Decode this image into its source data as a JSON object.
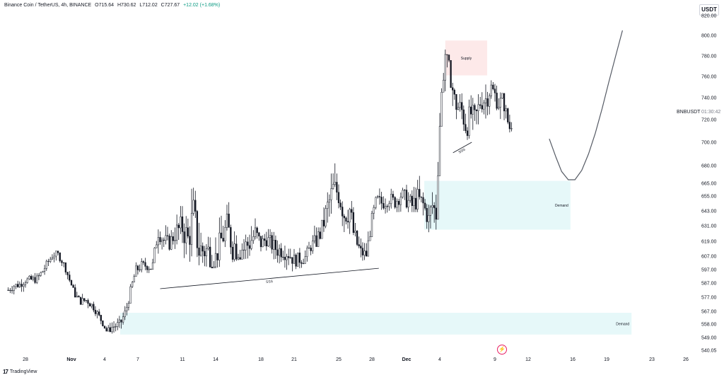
{
  "header": {
    "symbol": "Binance Coin / TetherUS, 4h, BINANCE",
    "open": "O715.64",
    "high": "H730.62",
    "low": "L712.02",
    "close": "C727.67",
    "change": "+12.02 (+1.68%)"
  },
  "currency_button": "USDT",
  "price_label": {
    "symbol": "BNBUSDT",
    "countdown": "01:30:42"
  },
  "footer": {
    "brand": "TradingView"
  },
  "colors": {
    "demand_zone": "#e6f8f9",
    "supply_zone": "#fde9e9",
    "candles": "#131722",
    "grid_text": "#131722"
  },
  "chart_data": {
    "type": "candlestick",
    "ylim": [
      540,
      825
    ],
    "y_ticks": [
      540.05,
      549.0,
      558.0,
      567.0,
      577.0,
      587.0,
      597.0,
      607.0,
      619.0,
      631.0,
      643.0,
      655.0,
      665.0,
      680.0,
      700.0,
      720.0,
      740.0,
      760.0,
      780.0,
      800.0,
      820.0
    ],
    "y_tick_labels": [
      "540.05",
      "549.00",
      "558.00",
      "567.00",
      "577.00",
      "587.00",
      "597.00",
      "607.00",
      "619.00",
      "631.00",
      "643.00",
      "655.00",
      "665.00",
      "680.00",
      "700.00",
      "720.00",
      "740.00",
      "760.00",
      "780.00",
      "800.00",
      "820.00"
    ],
    "x_ticks": [
      "28",
      "Nov",
      "4",
      "7",
      "11",
      "14",
      "18",
      "21",
      "25",
      "28",
      "Dec",
      "4",
      "9",
      "12",
      "16",
      "19",
      "23",
      "26"
    ],
    "x_tick_days": [
      -4,
      0,
      3,
      6,
      10,
      13,
      17,
      20,
      24,
      27,
      30,
      33,
      38,
      41,
      45,
      48,
      52,
      55
    ],
    "close_path": [
      [
        -5.5,
        582
      ],
      [
        -5,
        585
      ],
      [
        -4.5,
        586
      ],
      [
        -4,
        589
      ],
      [
        -3,
        590
      ],
      [
        -2.5,
        596
      ],
      [
        -2,
        603
      ],
      [
        -1.6,
        608
      ],
      [
        -1.2,
        609
      ],
      [
        -0.6,
        600
      ],
      [
        -0.2,
        590
      ],
      [
        0.3,
        579
      ],
      [
        0.8,
        574
      ],
      [
        1.4,
        575
      ],
      [
        2,
        570
      ],
      [
        2.6,
        562
      ],
      [
        3.2,
        553
      ],
      [
        3.7,
        556
      ],
      [
        4.4,
        558
      ],
      [
        4.9,
        567
      ],
      [
        5.3,
        580
      ],
      [
        5.8,
        596
      ],
      [
        6.3,
        600
      ],
      [
        6.8,
        600
      ],
      [
        7.3,
        598
      ],
      [
        7.8,
        627
      ],
      [
        8.3,
        620
      ],
      [
        8.8,
        617
      ],
      [
        9.4,
        626
      ],
      [
        10,
        630
      ],
      [
        10.5,
        620
      ],
      [
        11,
        640
      ],
      [
        11.5,
        612
      ],
      [
        12,
        612
      ],
      [
        12.5,
        610
      ],
      [
        13,
        606
      ],
      [
        13.5,
        620
      ],
      [
        14,
        630
      ],
      [
        14.5,
        616
      ],
      [
        15,
        616
      ],
      [
        15.5,
        613
      ],
      [
        16,
        618
      ],
      [
        16.5,
        625
      ],
      [
        17,
        617
      ],
      [
        17.5,
        621
      ],
      [
        18,
        616
      ],
      [
        18.5,
        612
      ],
      [
        19,
        612
      ],
      [
        19.5,
        609
      ],
      [
        20,
        604
      ],
      [
        20.5,
        605
      ],
      [
        21,
        606
      ],
      [
        21.5,
        615
      ],
      [
        22,
        619
      ],
      [
        22.5,
        628
      ],
      [
        23,
        646
      ],
      [
        23.5,
        660
      ],
      [
        24,
        658
      ],
      [
        24.5,
        641
      ],
      [
        25,
        644
      ],
      [
        25.4,
        622
      ],
      [
        26,
        610
      ],
      [
        26.5,
        608
      ],
      [
        27,
        636
      ],
      [
        27.4,
        652
      ],
      [
        27.9,
        649
      ],
      [
        28.5,
        653
      ],
      [
        29,
        650
      ],
      [
        29.5,
        656
      ],
      [
        30,
        652
      ],
      [
        30.5,
        647
      ],
      [
        31,
        653
      ],
      [
        31.5,
        648
      ],
      [
        32,
        636
      ],
      [
        32.3,
        648
      ],
      [
        32.7,
        640
      ],
      [
        32.9,
        700
      ],
      [
        33.2,
        748
      ],
      [
        33.5,
        782
      ],
      [
        33.7,
        770
      ],
      [
        34,
        760
      ],
      [
        34.3,
        738
      ],
      [
        34.6,
        732
      ],
      [
        35,
        728
      ],
      [
        35.4,
        713
      ],
      [
        35.8,
        726
      ],
      [
        36.2,
        720
      ],
      [
        36.7,
        737
      ],
      [
        37.2,
        739
      ],
      [
        37.6,
        750
      ],
      [
        38,
        742
      ],
      [
        38.4,
        734
      ],
      [
        38.7,
        739
      ],
      [
        39,
        726
      ],
      [
        39.3,
        712
      ],
      [
        39.6,
        718
      ]
    ],
    "ribbon_low_path": [
      [
        -5.5,
        577
      ],
      [
        -3,
        583
      ],
      [
        -1.5,
        601
      ],
      [
        0,
        586
      ],
      [
        1.5,
        568
      ],
      [
        3,
        555
      ],
      [
        4.2,
        549
      ],
      [
        5,
        560
      ],
      [
        5.8,
        590
      ],
      [
        7,
        592
      ],
      [
        7.8,
        608
      ],
      [
        9,
        612
      ],
      [
        11,
        601
      ],
      [
        13,
        598
      ],
      [
        15,
        604
      ],
      [
        17,
        607
      ],
      [
        19,
        598
      ],
      [
        20.2,
        594
      ],
      [
        21.5,
        606
      ],
      [
        23,
        632
      ],
      [
        24,
        638
      ],
      [
        25,
        612
      ],
      [
        26.2,
        600
      ],
      [
        27.5,
        640
      ],
      [
        29,
        642
      ],
      [
        31,
        642
      ],
      [
        32,
        626
      ],
      [
        32.7,
        620
      ],
      [
        33.3,
        755
      ],
      [
        34.5,
        696
      ],
      [
        35.5,
        702
      ],
      [
        36.5,
        706
      ],
      [
        37.5,
        714
      ],
      [
        38.5,
        716
      ],
      [
        39.2,
        708
      ],
      [
        39.6,
        710
      ]
    ],
    "ribbon_high_path": [
      [
        -5.5,
        587
      ],
      [
        -3,
        595
      ],
      [
        -1.5,
        612
      ],
      [
        0,
        595
      ],
      [
        1.5,
        580
      ],
      [
        3,
        563
      ],
      [
        4.2,
        562
      ],
      [
        5,
        573
      ],
      [
        5.8,
        605
      ],
      [
        7,
        606
      ],
      [
        7.8,
        632
      ],
      [
        9,
        636
      ],
      [
        11,
        665
      ],
      [
        13,
        636
      ],
      [
        15,
        660
      ],
      [
        17,
        630
      ],
      [
        19,
        626
      ],
      [
        20.2,
        614
      ],
      [
        21.5,
        626
      ],
      [
        23,
        672
      ],
      [
        24,
        687
      ],
      [
        25,
        656
      ],
      [
        26.2,
        620
      ],
      [
        27.5,
        662
      ],
      [
        29,
        664
      ],
      [
        31,
        676
      ],
      [
        32,
        658
      ],
      [
        32.7,
        664
      ],
      [
        33.3,
        795
      ],
      [
        34.5,
        742
      ],
      [
        35.5,
        746
      ],
      [
        36.5,
        744
      ],
      [
        37.5,
        758
      ],
      [
        38.5,
        748
      ],
      [
        39.2,
        730
      ],
      [
        39.6,
        731
      ]
    ],
    "zones": [
      {
        "label": "Supply",
        "x0": 33.5,
        "x1": 37.3,
        "y0": 761,
        "y1": 795
      },
      {
        "label": "Demand",
        "x0": 31.6,
        "x1": 44.8,
        "y0": 628,
        "y1": 667
      },
      {
        "label": "Demand",
        "x0": 4.4,
        "x1": 50.2,
        "y0": 551,
        "y1": 566
      }
    ],
    "annotations": [
      {
        "label": "SSS",
        "x0": 8,
        "y0": 583,
        "x1": 27.6,
        "y1": 598
      },
      {
        "label": "SSS",
        "x0": 34.2,
        "y0": 691,
        "x1": 35.9,
        "y1": 700
      }
    ],
    "projection_path": [
      [
        42.9,
        703
      ],
      [
        43.5,
        687
      ],
      [
        44,
        675
      ],
      [
        44.6,
        668
      ],
      [
        45.2,
        668
      ],
      [
        45.8,
        676
      ],
      [
        46.4,
        690
      ],
      [
        47,
        708
      ],
      [
        47.6,
        730
      ],
      [
        48.2,
        755
      ],
      [
        48.8,
        780
      ],
      [
        49.4,
        805
      ]
    ],
    "current_price": 727.67
  }
}
